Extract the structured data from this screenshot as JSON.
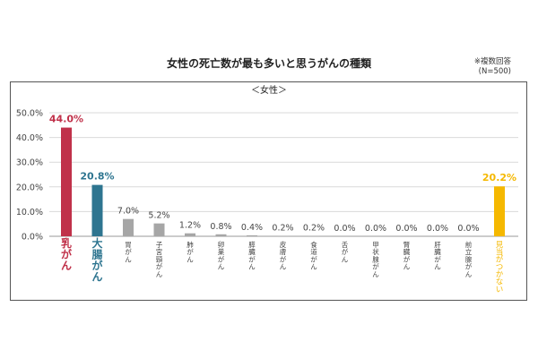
{
  "title": "女性の死亡数が最も多いと思うがんの種類",
  "note_line1": "※複数回答",
  "note_line2": "(N=500)",
  "chart_data": {
    "type": "bar",
    "panel_label": "＜女性＞",
    "categories": [
      "乳がん",
      "大腸がん",
      "胃がん",
      "子宮頸がん",
      "肺がん",
      "卵巣がん",
      "膵臓がん",
      "皮膚がん",
      "食道がん",
      "舌がん",
      "甲状腺がん",
      "腎臓がん",
      "肝臓がん",
      "前立腺がん",
      "見当がつかない"
    ],
    "values": [
      44.0,
      20.8,
      7.0,
      5.2,
      1.2,
      0.8,
      0.4,
      0.2,
      0.2,
      0.0,
      0.0,
      0.0,
      0.0,
      0.0,
      20.2
    ],
    "value_labels": [
      "44.0%",
      "20.8%",
      "7.0%",
      "5.2%",
      "1.2%",
      "0.8%",
      "0.4%",
      "0.2%",
      "0.2%",
      "0.0%",
      "0.0%",
      "0.0%",
      "0.0%",
      "0.0%",
      "20.2%"
    ],
    "yticks": [
      "0.0%",
      "10.0%",
      "20.0%",
      "30.0%",
      "40.0%",
      "50.0%"
    ],
    "ylim": [
      0,
      50
    ],
    "grid": true,
    "colors": {
      "乳がん": "#c0314a",
      "大腸がん": "#2e7590",
      "見当がつかない": "#f5b800",
      "default": "#a6a6a6",
      "default_label": "#444444"
    }
  }
}
